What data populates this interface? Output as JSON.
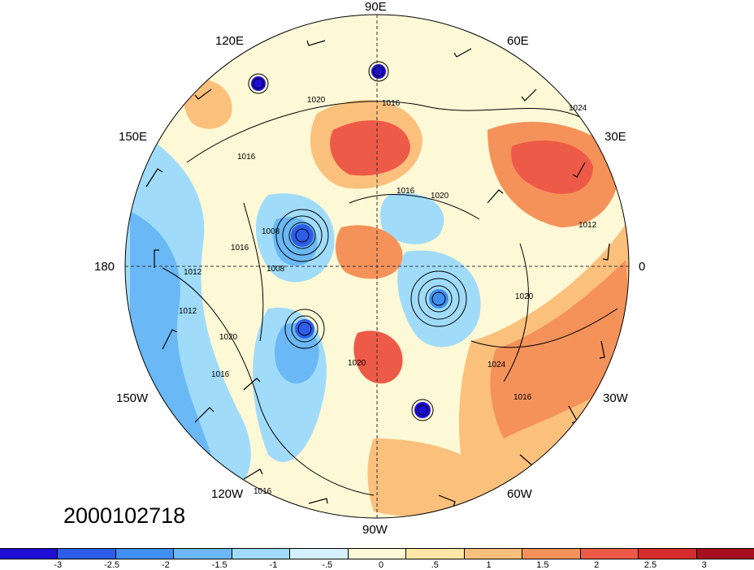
{
  "map": {
    "longitude_labels": {
      "lon_90e": "90E",
      "lon_60e": "60E",
      "lon_120e": "120E",
      "lon_30e": "30E",
      "lon_150e": "150E",
      "lon_180": "180",
      "lon_0": "0",
      "lon_150w": "150W",
      "lon_30w": "30W",
      "lon_120w": "120W",
      "lon_60w": "60W",
      "lon_90w": "90W"
    },
    "isobar_labels": [
      "1020",
      "1016",
      "1024",
      "1016",
      "1016",
      "1020",
      "1008",
      "1016",
      "1008",
      "1012",
      "1012",
      "1020",
      "1016",
      "1020",
      "1024",
      "1016",
      "1020",
      "1012",
      "1016"
    ],
    "timestamp": "2000102718"
  },
  "colorbar": {
    "colors": [
      "#1f0ed6",
      "#2c5ee8",
      "#3f8ff0",
      "#6ab8f5",
      "#a0dcfa",
      "#d5f1fd",
      "#fdf8d6",
      "#fde6a6",
      "#fbc07c",
      "#f5925a",
      "#ee5a48",
      "#d72c2c",
      "#a60f1f"
    ],
    "tick_labels": [
      "-3",
      "-2.5",
      "-2",
      "-1.5",
      "-1",
      "-.5",
      "0",
      ".5",
      "1",
      "1.5",
      "2",
      "2.5",
      "3"
    ]
  }
}
